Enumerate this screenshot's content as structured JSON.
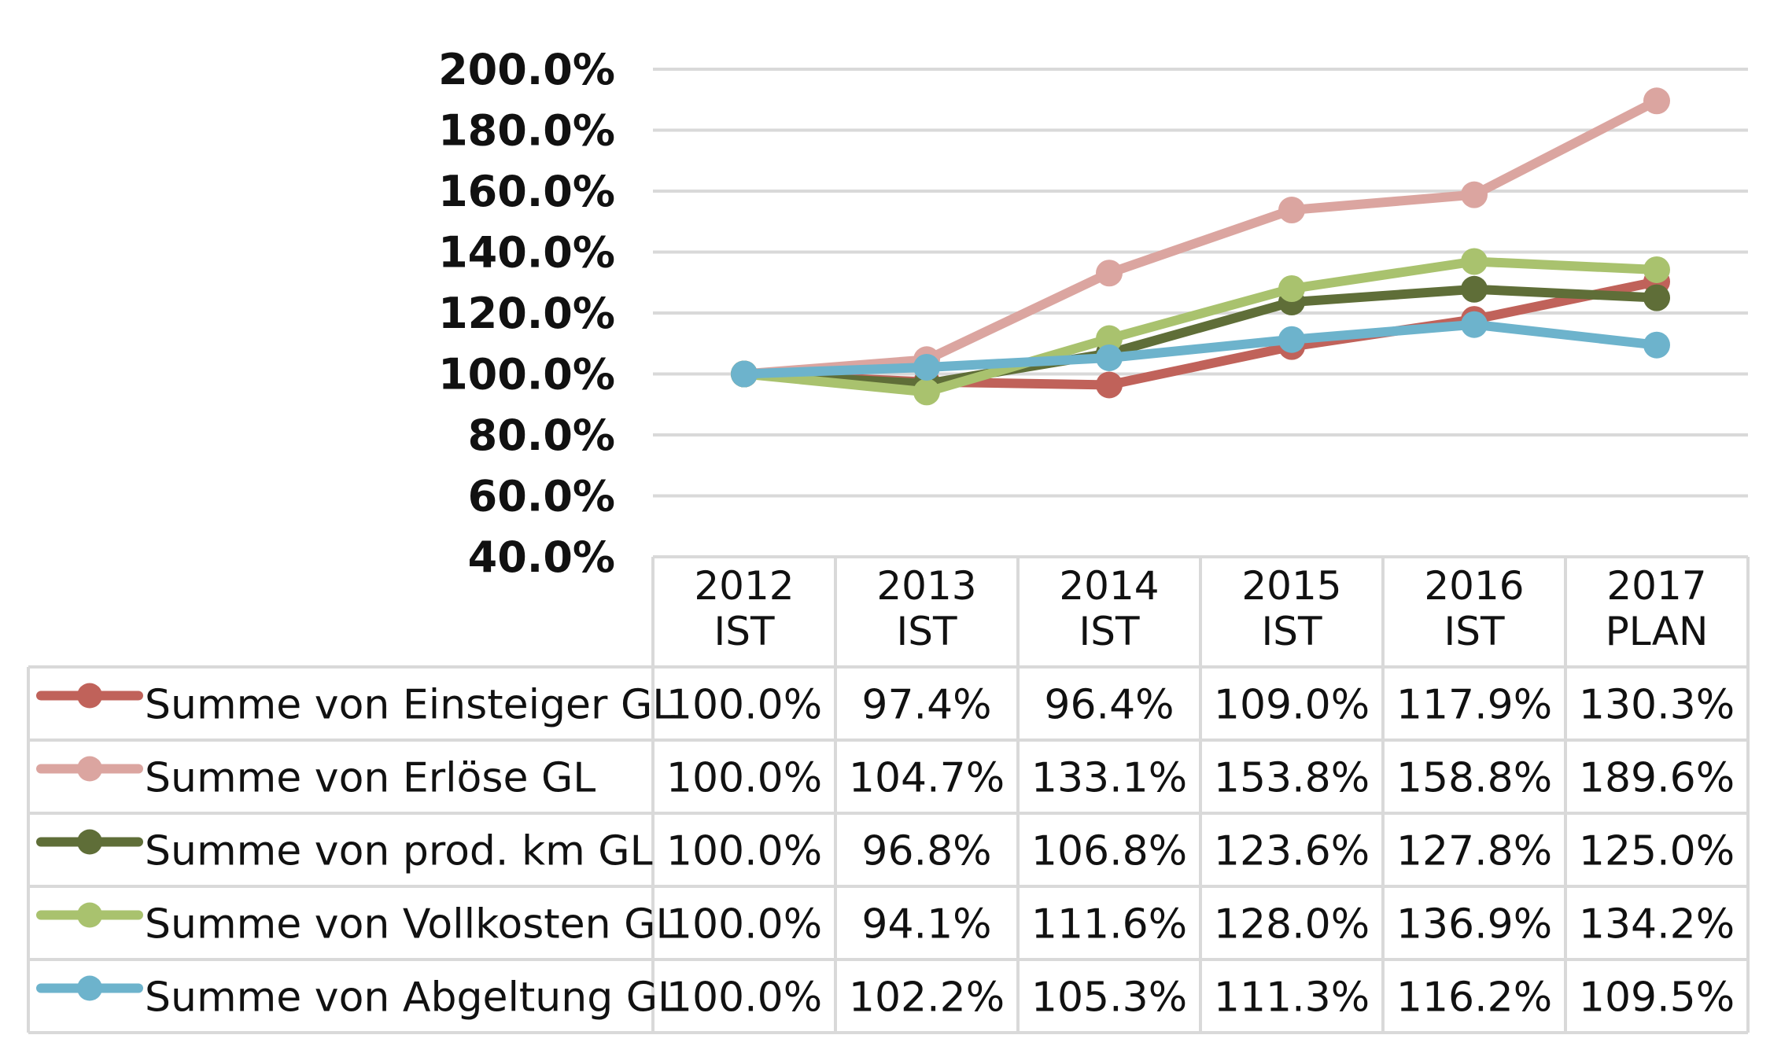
{
  "chart_data": {
    "type": "line",
    "title": "",
    "xlabel": "",
    "ylabel": "",
    "categories": [
      [
        "2012",
        "IST"
      ],
      [
        "2013",
        "IST"
      ],
      [
        "2014",
        "IST"
      ],
      [
        "2015",
        "IST"
      ],
      [
        "2016",
        "IST"
      ],
      [
        "2017",
        "PLAN"
      ]
    ],
    "ylim": [
      40,
      200
    ],
    "yticks": [
      "200.0%",
      "180.0%",
      "160.0%",
      "140.0%",
      "120.0%",
      "100.0%",
      "80.0%",
      "60.0%",
      "40.0%"
    ],
    "grid": true,
    "legend": "data-table",
    "series": [
      {
        "name": "Summe von Einsteiger GL",
        "color": "#c0625a",
        "values": [
          100.0,
          97.4,
          96.4,
          109.0,
          117.9,
          130.3
        ],
        "labels": [
          "100.0%",
          "97.4%",
          "96.4%",
          "109.0%",
          "117.9%",
          "130.3%"
        ]
      },
      {
        "name": "Summe von Erlöse GL",
        "color": "#dba5a0",
        "values": [
          100.0,
          104.7,
          133.1,
          153.8,
          158.8,
          189.6
        ],
        "labels": [
          "100.0%",
          "104.7%",
          "133.1%",
          "153.8%",
          "158.8%",
          "189.6%"
        ]
      },
      {
        "name": "Summe von prod. km GL",
        "color": "#5f6e38",
        "values": [
          100.0,
          96.8,
          106.8,
          123.6,
          127.8,
          125.0
        ],
        "labels": [
          "100.0%",
          "96.8%",
          "106.8%",
          "123.6%",
          "127.8%",
          "125.0%"
        ]
      },
      {
        "name": "Summe von Vollkosten GL",
        "color": "#a9c26e",
        "values": [
          100.0,
          94.1,
          111.6,
          128.0,
          136.9,
          134.2
        ],
        "labels": [
          "100.0%",
          "94.1%",
          "111.6%",
          "128.0%",
          "136.9%",
          "134.2%"
        ]
      },
      {
        "name": "Summe von Abgeltung GL",
        "color": "#6db3cc",
        "values": [
          100.0,
          102.2,
          105.3,
          111.3,
          116.2,
          109.5
        ],
        "labels": [
          "100.0%",
          "102.2%",
          "105.3%",
          "111.3%",
          "116.2%",
          "109.5%"
        ]
      }
    ]
  }
}
